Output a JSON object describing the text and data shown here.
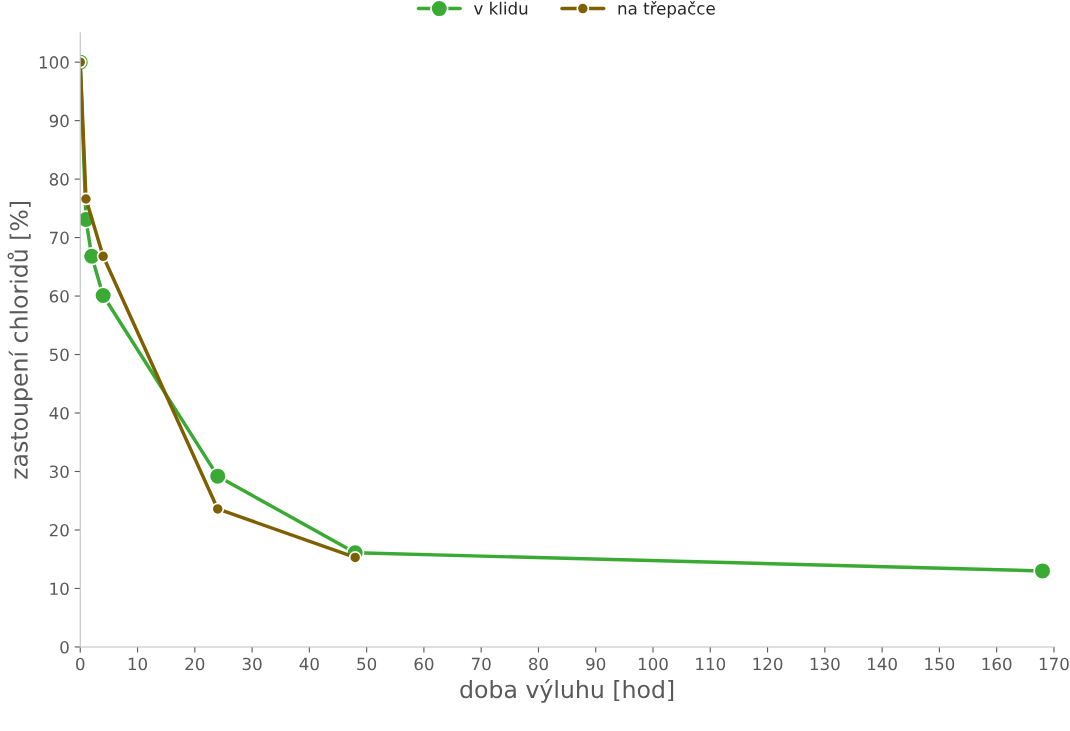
{
  "chart_data": {
    "type": "line",
    "xlabel": "doba výluhu [hod]",
    "ylabel": "zastoupení chloridů [%]",
    "series": [
      {
        "name": "v klidu",
        "color": "#3aaa35",
        "x": [
          0,
          1,
          2,
          4,
          24,
          48,
          168
        ],
        "values": [
          100,
          73.1,
          66.8,
          60.1,
          29.2,
          16.1,
          13.0
        ]
      },
      {
        "name": "na třepačce",
        "color": "#7f6000",
        "x": [
          0,
          1,
          4,
          24,
          48
        ],
        "values": [
          100,
          76.6,
          66.8,
          23.6,
          15.3
        ]
      }
    ],
    "xlim": [
      0,
      170
    ],
    "xticks": [
      0,
      10,
      20,
      30,
      40,
      50,
      60,
      70,
      80,
      90,
      100,
      110,
      120,
      130,
      140,
      150,
      160,
      170
    ],
    "ylim": [
      0,
      105
    ],
    "yticks": [
      0,
      10,
      20,
      30,
      40,
      50,
      60,
      70,
      80,
      90,
      100
    ],
    "marker": "circle",
    "line_style": "solid",
    "legend": "top",
    "grid": false
  }
}
